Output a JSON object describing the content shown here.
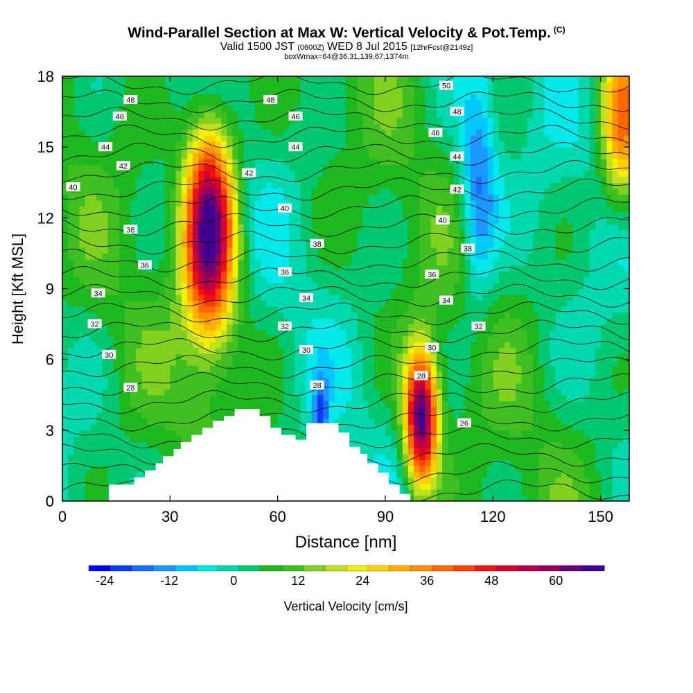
{
  "chart_data": {
    "type": "heatmap",
    "title": "Wind-Parallel Section at Max W: Vertical Velocity & Pot.Temp.",
    "title_mark": "(C)",
    "subtitle": {
      "valid": "Valid 1500 JST",
      "utc": "(0600Z)",
      "date": "WED 8 Jul 2015",
      "fcst": "[12hrFcst@2149z]"
    },
    "subtitle2": "boxWmax=64@36.31,139.67,1374m",
    "xlabel": "Distance [nm]",
    "ylabel": "Height [Kft MSL]",
    "xlim": [
      0,
      158
    ],
    "ylim": [
      0,
      18
    ],
    "x_ticks": [
      0,
      30,
      60,
      90,
      120,
      150
    ],
    "y_ticks": [
      0,
      3,
      6,
      9,
      12,
      15,
      18
    ],
    "colorbar": {
      "label": "Vertical Velocity [cm/s]",
      "ticks": [
        -24,
        -12,
        0,
        12,
        24,
        36,
        48,
        60
      ],
      "min": -27,
      "max": 69,
      "step": 4,
      "colors": [
        "#0000ff",
        "#0a3cff",
        "#1a6eff",
        "#1e96ff",
        "#00c8ff",
        "#00e8e8",
        "#00d8b0",
        "#00c870",
        "#20b820",
        "#40c020",
        "#80d020",
        "#c0e020",
        "#f0f000",
        "#ffd000",
        "#ffb000",
        "#ff9000",
        "#ff6800",
        "#ff4000",
        "#f01010",
        "#d80030",
        "#b80048",
        "#90005a",
        "#680078",
        "#400090"
      ]
    },
    "velocity_cores": [
      {
        "x": 41,
        "y": 11.5,
        "w": 64,
        "sx": 5,
        "sy": 3.2
      },
      {
        "x": 100,
        "y": 3.5,
        "w": 64,
        "sx": 3.2,
        "sy": 2.0
      },
      {
        "x": 156,
        "y": 16,
        "w": 32,
        "sx": 4,
        "sy": 2.5
      },
      {
        "x": 116,
        "y": 13,
        "w": -20,
        "sx": 3.5,
        "sy": 3.2
      },
      {
        "x": 72,
        "y": 3.5,
        "w": -20,
        "sx": 1.5,
        "sy": 1.2
      }
    ],
    "terrain_kft": [
      [
        0,
        0
      ],
      [
        13,
        0
      ],
      [
        13,
        0.7
      ],
      [
        20,
        0.7
      ],
      [
        20,
        1.0
      ],
      [
        23,
        1.0
      ],
      [
        23,
        1.3
      ],
      [
        26,
        1.3
      ],
      [
        26,
        1.6
      ],
      [
        28,
        1.6
      ],
      [
        28,
        1.9
      ],
      [
        31,
        1.9
      ],
      [
        31,
        2.2
      ],
      [
        33,
        2.2
      ],
      [
        33,
        2.5
      ],
      [
        36,
        2.5
      ],
      [
        36,
        2.8
      ],
      [
        39,
        2.8
      ],
      [
        39,
        3.1
      ],
      [
        42,
        3.1
      ],
      [
        42,
        3.4
      ],
      [
        45,
        3.4
      ],
      [
        45,
        3.6
      ],
      [
        48,
        3.6
      ],
      [
        48,
        3.9
      ],
      [
        55,
        3.9
      ],
      [
        55,
        3.6
      ],
      [
        58,
        3.6
      ],
      [
        58,
        3.1
      ],
      [
        61,
        3.1
      ],
      [
        61,
        2.8
      ],
      [
        65,
        2.8
      ],
      [
        65,
        2.6
      ],
      [
        68,
        2.6
      ],
      [
        68,
        3.3
      ],
      [
        77,
        3.3
      ],
      [
        77,
        2.9
      ],
      [
        80,
        2.9
      ],
      [
        80,
        2.3
      ],
      [
        83,
        2.3
      ],
      [
        83,
        2.0
      ],
      [
        85,
        2.0
      ],
      [
        85,
        1.6
      ],
      [
        88,
        1.6
      ],
      [
        88,
        1.2
      ],
      [
        91,
        1.2
      ],
      [
        91,
        0.7
      ],
      [
        94,
        0.7
      ],
      [
        94,
        0.3
      ],
      [
        97,
        0.3
      ],
      [
        97,
        0
      ]
    ],
    "theta_labels": [
      {
        "x": 19,
        "y": 17.0,
        "t": "48"
      },
      {
        "x": 58,
        "y": 17.0,
        "t": "48"
      },
      {
        "x": 107,
        "y": 17.6,
        "t": "50"
      },
      {
        "x": 110,
        "y": 16.5,
        "t": "48"
      },
      {
        "x": 16,
        "y": 16.3,
        "t": "46"
      },
      {
        "x": 65,
        "y": 16.3,
        "t": "46"
      },
      {
        "x": 104,
        "y": 15.6,
        "t": "46"
      },
      {
        "x": 12,
        "y": 15.0,
        "t": "44"
      },
      {
        "x": 65,
        "y": 15.0,
        "t": "44"
      },
      {
        "x": 110,
        "y": 14.6,
        "t": "44"
      },
      {
        "x": 17,
        "y": 14.2,
        "t": "42"
      },
      {
        "x": 52,
        "y": 13.9,
        "t": "42"
      },
      {
        "x": 110,
        "y": 13.2,
        "t": "42"
      },
      {
        "x": 3,
        "y": 13.3,
        "t": "40"
      },
      {
        "x": 62,
        "y": 12.4,
        "t": "40"
      },
      {
        "x": 106,
        "y": 11.9,
        "t": "40"
      },
      {
        "x": 19,
        "y": 11.5,
        "t": "38"
      },
      {
        "x": 71,
        "y": 10.9,
        "t": "38"
      },
      {
        "x": 113,
        "y": 10.7,
        "t": "38"
      },
      {
        "x": 23,
        "y": 10.0,
        "t": "36"
      },
      {
        "x": 62,
        "y": 9.7,
        "t": "36"
      },
      {
        "x": 103,
        "y": 9.6,
        "t": "36"
      },
      {
        "x": 10,
        "y": 8.8,
        "t": "34"
      },
      {
        "x": 68,
        "y": 8.6,
        "t": "34"
      },
      {
        "x": 107,
        "y": 8.5,
        "t": "34"
      },
      {
        "x": 9,
        "y": 7.5,
        "t": "32"
      },
      {
        "x": 62,
        "y": 7.4,
        "t": "32"
      },
      {
        "x": 116,
        "y": 7.4,
        "t": "32"
      },
      {
        "x": 13,
        "y": 6.2,
        "t": "30"
      },
      {
        "x": 68,
        "y": 6.4,
        "t": "30"
      },
      {
        "x": 103,
        "y": 6.5,
        "t": "30"
      },
      {
        "x": 19,
        "y": 4.8,
        "t": "28"
      },
      {
        "x": 71,
        "y": 4.9,
        "t": "28"
      },
      {
        "x": 100,
        "y": 5.3,
        "t": "28"
      },
      {
        "x": 112,
        "y": 3.3,
        "t": "26"
      }
    ]
  }
}
